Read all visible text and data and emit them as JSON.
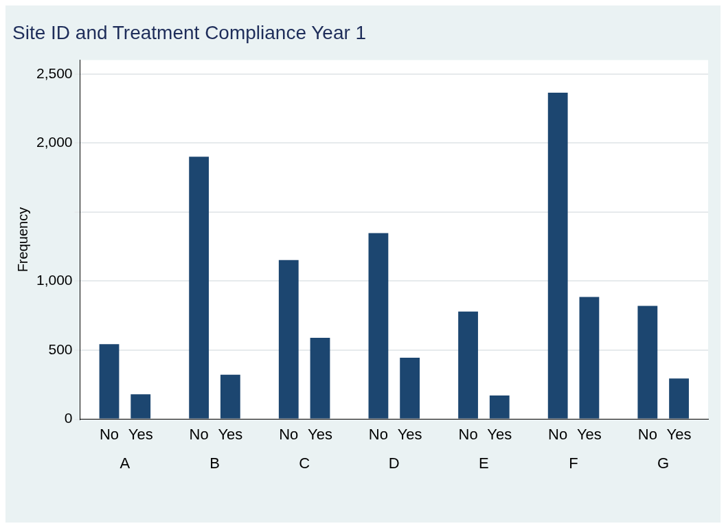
{
  "chart_data": {
    "type": "bar",
    "title": "Site ID and Treatment Compliance Year 1",
    "ylabel": "Frequency",
    "categories": [
      "A",
      "B",
      "C",
      "D",
      "E",
      "F",
      "G"
    ],
    "series": [
      {
        "name": "No",
        "color": "#1c4670",
        "values": [
          544,
          1901,
          1152,
          1348,
          780,
          2364,
          821
        ]
      },
      {
        "name": "Yes",
        "color": "#1c4670",
        "values": [
          181,
          322,
          590,
          445,
          172,
          885,
          295
        ]
      }
    ],
    "ylim": [
      0,
      2600
    ],
    "yticks": [
      0,
      500,
      {
        "value": 1000,
        "label": "1,000"
      },
      {
        "value": 1500,
        "label": null
      },
      {
        "value": 2000,
        "label": "2,000"
      },
      {
        "value": 2500,
        "label": "2,500"
      }
    ],
    "grid": "y",
    "legend": false
  }
}
